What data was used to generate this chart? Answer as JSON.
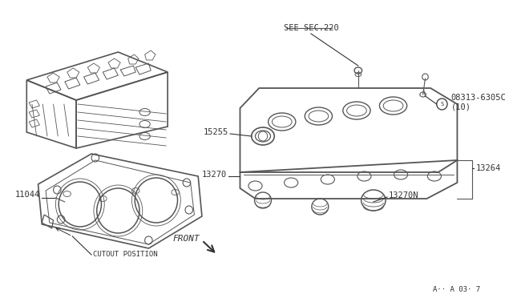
{
  "background_color": "#ffffff",
  "line_color": "#555555",
  "text_color": "#333333",
  "fig_width": 6.4,
  "fig_height": 3.72,
  "dpi": 100,
  "labels": {
    "see_sec": "SEE SEC.220",
    "part_15255": "15255",
    "part_08313": "08313-6305C\n(10)",
    "part_13264": "13264",
    "part_13270": "13270",
    "part_13270N": "13270N",
    "part_11044": "11044",
    "cutout": "CUTOUT POSITION",
    "front": "FRONT",
    "ref": "A·· A 03· 7"
  }
}
